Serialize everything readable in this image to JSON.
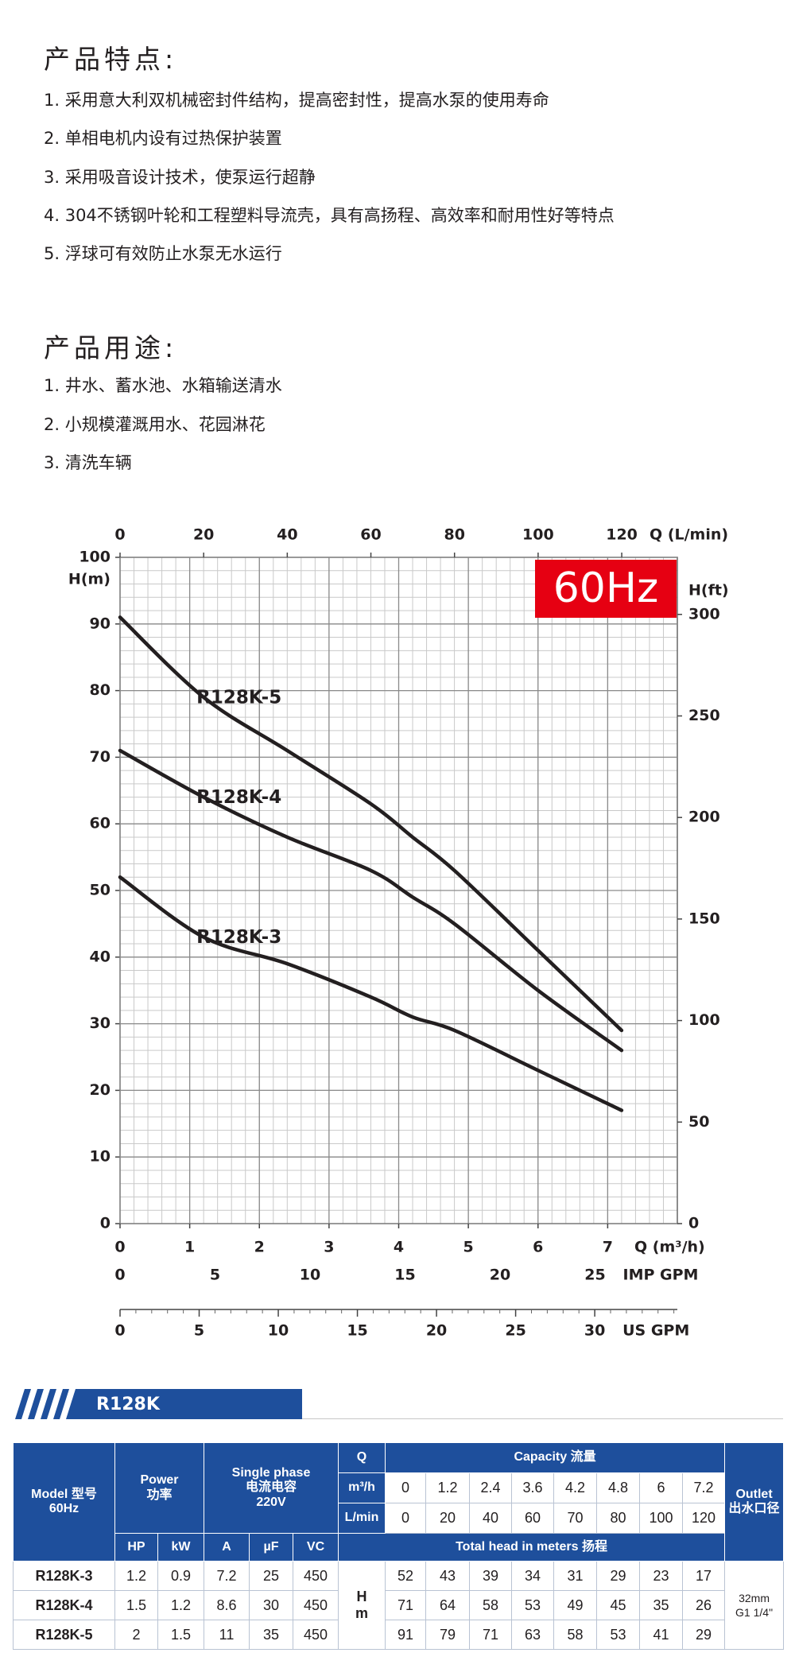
{
  "features": {
    "title": "产品特点:",
    "items": [
      "1. 采用意大利双机械密封件结构，提高密封性，提高水泵的使用寿命",
      "2. 单相电机内设有过热保护装置",
      "3. 采用吸音设计技术，使泵运行超静",
      "4. 304不锈钢叶轮和工程塑料导流壳，具有高扬程、高效率和耐用性好等特点",
      "5. 浮球可有效防止水泵无水运行"
    ]
  },
  "usage": {
    "title": "产品用途:",
    "items": [
      "1. 井水、蓄水池、水箱输送清水",
      "2. 小规模灌溉用水、花园淋花",
      "3. 清洗车辆"
    ]
  },
  "chart_data": {
    "type": "line",
    "badge": "60Hz",
    "x": [
      0,
      1.2,
      2.4,
      3.6,
      4.2,
      4.8,
      6,
      7.2
    ],
    "series": [
      {
        "name": "R128K-5",
        "color": "#231f20",
        "values": [
          91,
          79,
          71,
          63,
          58,
          53,
          41,
          29
        ]
      },
      {
        "name": "R128K-4",
        "color": "#231f20",
        "values": [
          71,
          64,
          58,
          53,
          49,
          45,
          35,
          26
        ]
      },
      {
        "name": "R128K-3",
        "color": "#231f20",
        "values": [
          52,
          43,
          39,
          34,
          31,
          29,
          23,
          17
        ]
      }
    ],
    "x_label": "Q (m³/h)",
    "xlim": [
      0,
      8
    ],
    "xticks": [
      0,
      1,
      2,
      3,
      4,
      5,
      6,
      7
    ],
    "y_label": "H(m)",
    "ylim": [
      0,
      100
    ],
    "yticks": [
      0,
      10,
      20,
      30,
      40,
      50,
      60,
      70,
      80,
      90,
      100
    ],
    "y2_label": "H(ft)",
    "y2lim": [
      0,
      328.1
    ],
    "y2ticks": [
      0,
      50,
      100,
      150,
      200,
      250,
      300
    ],
    "top_axis": {
      "label": "Q (L/min)",
      "lim": [
        0,
        133.3
      ],
      "ticks": [
        0,
        20,
        40,
        60,
        80,
        100,
        120
      ]
    },
    "imp_axis": {
      "label": "IMP GPM",
      "lim": [
        0,
        29.33
      ],
      "ticks": [
        0,
        5,
        10,
        15,
        20,
        25
      ]
    },
    "us_axis": {
      "label": "US GPM",
      "lim": [
        0,
        35.22
      ],
      "ticks": [
        0,
        5,
        10,
        15,
        20,
        25,
        30
      ]
    },
    "grid": true
  },
  "table": {
    "banner": "R128K",
    "head": {
      "model": "Model 型号",
      "hz": "60Hz",
      "power": "Power",
      "power_cn": "功率",
      "phase": "Single phase",
      "phase_cn": "电流电容",
      "voltage": "220V",
      "q": "Q",
      "capacity": "Capacity 流量",
      "outlet": "Outlet",
      "outlet_cn": "出水口径",
      "m3h": "m³/h",
      "lmin": "L/min",
      "units": [
        "HP",
        "kW",
        "A",
        "µF",
        "VC"
      ],
      "total_head": "Total head in meters 扬程",
      "h": "H",
      "m": "m"
    },
    "q_m3h": [
      0,
      1.2,
      2.4,
      3.6,
      4.2,
      4.8,
      6,
      7.2
    ],
    "q_lmin": [
      0,
      20,
      40,
      60,
      70,
      80,
      100,
      120
    ],
    "rows": [
      {
        "model": "R128K-3",
        "hp": 1.2,
        "kw": 0.9,
        "a": 7.2,
        "uf": 25,
        "vc": 450,
        "head": [
          52,
          43,
          39,
          34,
          31,
          29,
          23,
          17
        ]
      },
      {
        "model": "R128K-4",
        "hp": 1.5,
        "kw": 1.2,
        "a": 8.6,
        "uf": 30,
        "vc": 450,
        "head": [
          71,
          64,
          58,
          53,
          49,
          45,
          35,
          26
        ]
      },
      {
        "model": "R128K-5",
        "hp": 2,
        "kw": 1.5,
        "a": 11,
        "uf": 35,
        "vc": 450,
        "head": [
          91,
          79,
          71,
          63,
          58,
          53,
          41,
          29
        ]
      }
    ],
    "outlet": "32mm",
    "outlet_thread": "G1 1/4\""
  }
}
